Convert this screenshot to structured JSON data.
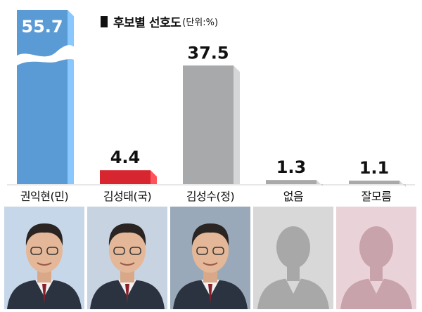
{
  "legend": {
    "title": "후보별 선호도",
    "unit": "(단위:%)"
  },
  "chart_data": {
    "type": "bar",
    "title": "후보별 선호도",
    "ylabel": "",
    "unit": "%",
    "categories": [
      "권익현(민)",
      "김성태(국)",
      "김성수(정)",
      "없음",
      "잘모름"
    ],
    "values": [
      55.7,
      4.4,
      37.5,
      1.3,
      1.1
    ],
    "value_labels": [
      "55.7",
      "4.4",
      "37.5",
      "1.3",
      "1.1"
    ],
    "colors": [
      "#5b9bd5",
      "#d7262f",
      "#a8a9ab",
      "#a8a9ab",
      "#a8a9ab"
    ],
    "axis_break_on": "권익현(민)",
    "grid": false
  },
  "photos": [
    {
      "name": "권익현",
      "kind": "portrait",
      "bg": "#c7d7ea"
    },
    {
      "name": "김성태",
      "kind": "portrait",
      "bg": "#c8d3e2"
    },
    {
      "name": "김성수",
      "kind": "portrait",
      "bg": "#9aa9b9"
    },
    {
      "name": "없음",
      "kind": "silhouette",
      "bg": "#d8d8d8",
      "fill": "#a8a8a8"
    },
    {
      "name": "잘모름",
      "kind": "silhouette",
      "bg": "#ead3d8",
      "fill": "#c9a3ab"
    }
  ]
}
